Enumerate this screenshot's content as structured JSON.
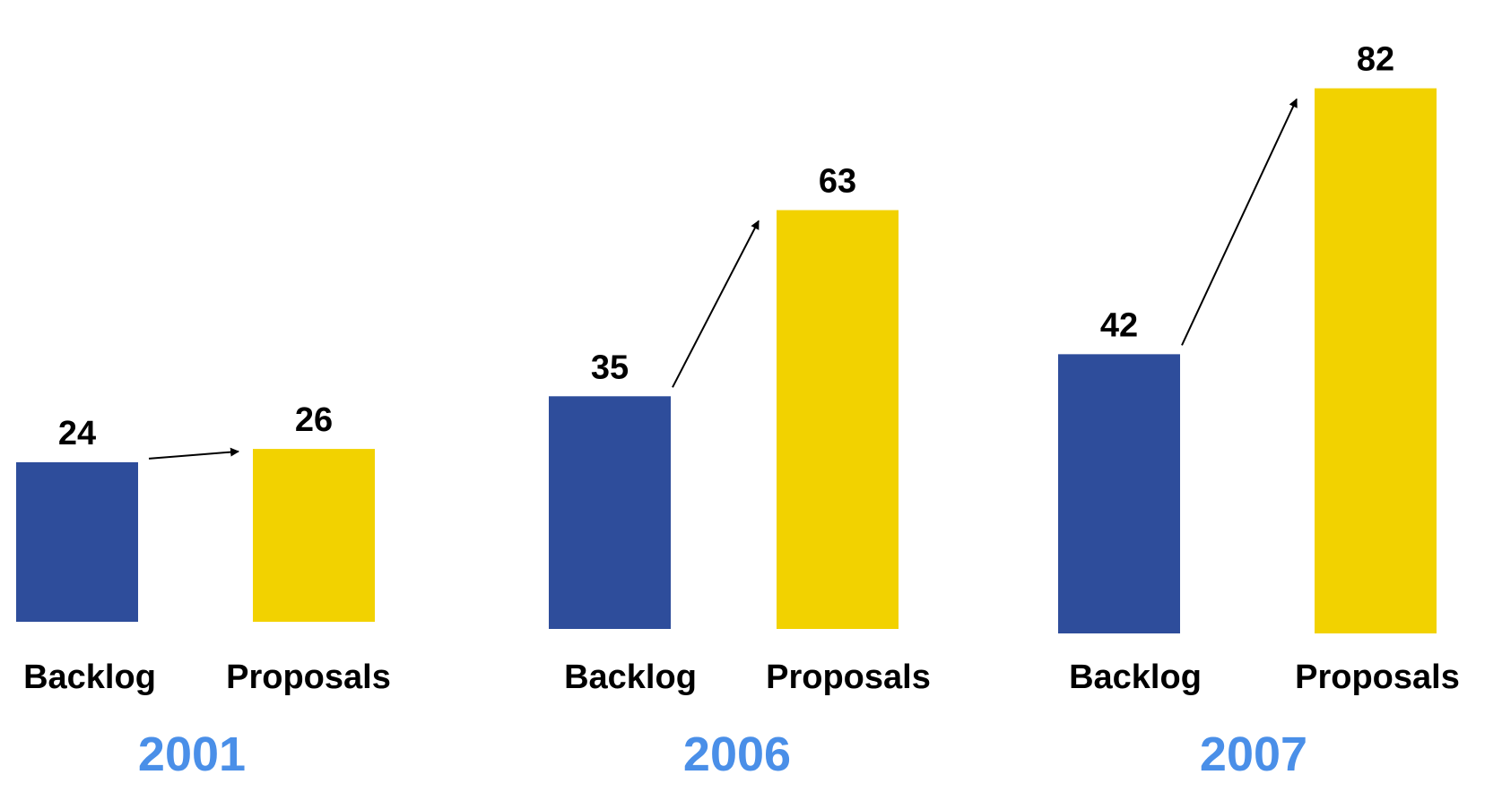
{
  "chart_data": {
    "type": "bar",
    "groups": [
      {
        "year": "2001",
        "bars": [
          {
            "label": "Backlog",
            "value": 24
          },
          {
            "label": "Proposals",
            "value": 26
          }
        ]
      },
      {
        "year": "2006",
        "bars": [
          {
            "label": "Backlog",
            "value": 35
          },
          {
            "label": "Proposals",
            "value": 63
          }
        ]
      },
      {
        "year": "2007",
        "bars": [
          {
            "label": "Backlog",
            "value": 42
          },
          {
            "label": "Proposals",
            "value": 82
          }
        ]
      }
    ],
    "arrows": "from Backlog bar to Proposals bar in each group",
    "grid": false,
    "legend": "none",
    "colors": {
      "Backlog": "#2e4d9b",
      "Proposals": "#f2d200",
      "year": "#4a8fe8",
      "text": "#000000"
    }
  }
}
